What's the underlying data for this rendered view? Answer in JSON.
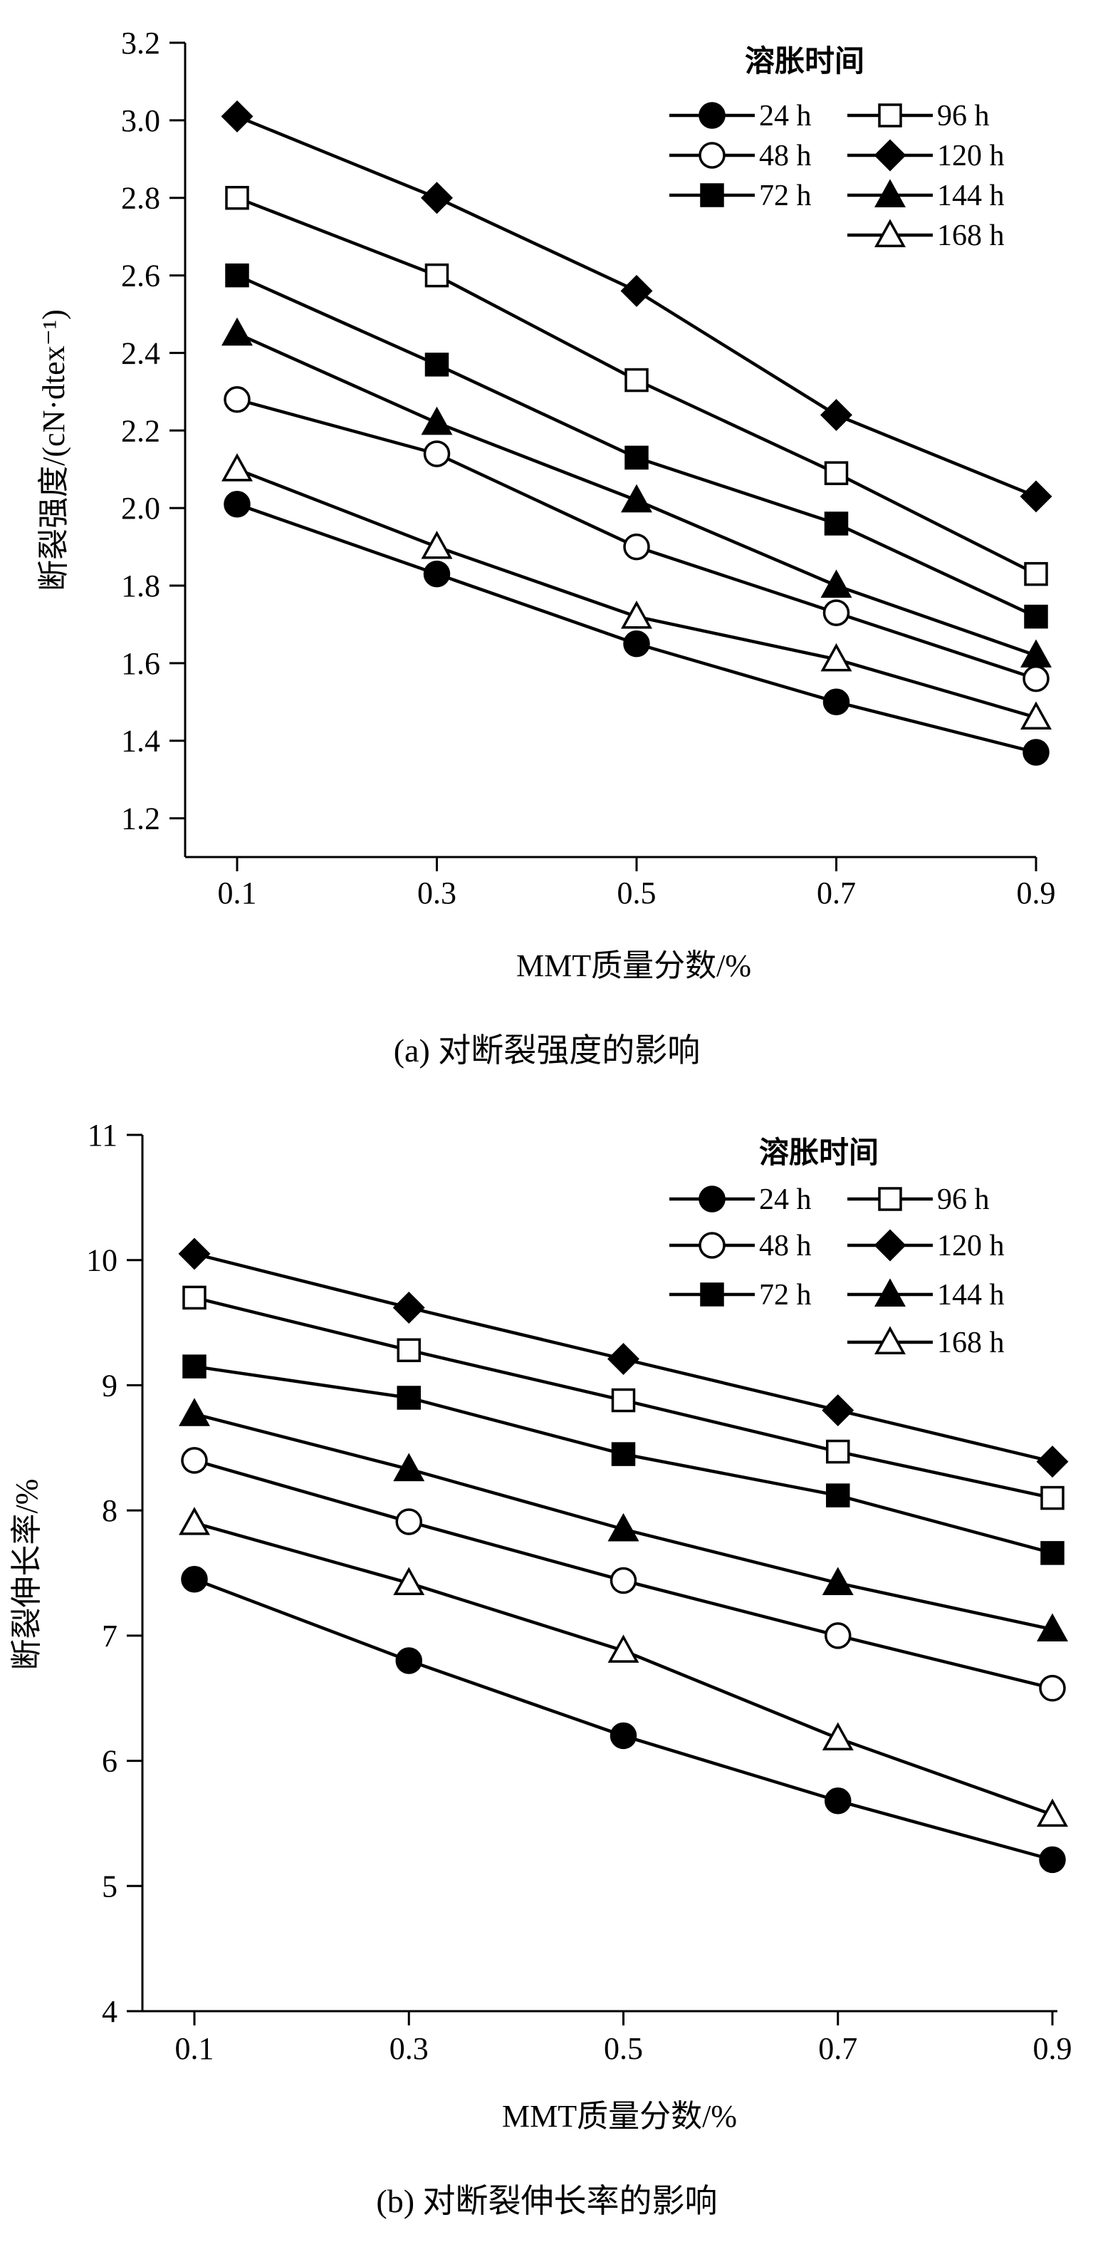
{
  "chart_data": [
    {
      "type": "line",
      "x": [
        0.1,
        0.3,
        0.5,
        0.7,
        0.9
      ],
      "xticks": [
        "0.1",
        "0.3",
        "0.5",
        "0.7",
        "0.9"
      ],
      "xlabel": "MMT质量分数/%",
      "ylabel": "断裂强度/(cN·dtex⁻¹)",
      "ylim": [
        1.1,
        3.2
      ],
      "yticks": [
        "1.2",
        "1.4",
        "1.6",
        "1.8",
        "2.0",
        "2.2",
        "2.4",
        "2.6",
        "2.8",
        "3.0",
        "3.2"
      ],
      "caption": "(a) 对断裂强度的影响",
      "legend_title": "溶胀时间",
      "series": [
        {
          "name": "24 h",
          "marker": "circle-filled",
          "values": [
            2.01,
            1.83,
            1.65,
            1.5,
            1.37
          ]
        },
        {
          "name": "48 h",
          "marker": "circle-open",
          "values": [
            2.28,
            2.14,
            1.9,
            1.73,
            1.56
          ]
        },
        {
          "name": "72 h",
          "marker": "square-filled",
          "values": [
            2.6,
            2.37,
            2.13,
            1.96,
            1.72
          ]
        },
        {
          "name": "96 h",
          "marker": "square-open",
          "values": [
            2.8,
            2.6,
            2.33,
            2.09,
            1.83
          ]
        },
        {
          "name": "120 h",
          "marker": "diamond-filled",
          "values": [
            3.01,
            2.8,
            2.56,
            2.24,
            2.03
          ]
        },
        {
          "name": "144 h",
          "marker": "triangle-filled",
          "values": [
            2.45,
            2.22,
            2.02,
            1.8,
            1.62
          ]
        },
        {
          "name": "168 h",
          "marker": "triangle-open",
          "values": [
            2.1,
            1.9,
            1.72,
            1.61,
            1.46
          ]
        }
      ]
    },
    {
      "type": "line",
      "x": [
        0.1,
        0.3,
        0.5,
        0.7,
        0.9
      ],
      "xticks": [
        "0.1",
        "0.3",
        "0.5",
        "0.7",
        "0.9"
      ],
      "xlabel": "MMT质量分数/%",
      "ylabel": "断裂伸长率/%",
      "ylim": [
        4,
        11
      ],
      "yticks": [
        "4",
        "5",
        "6",
        "7",
        "8",
        "9",
        "10",
        "11"
      ],
      "caption": "(b) 对断裂伸长率的影响",
      "legend_title": "溶胀时间",
      "series": [
        {
          "name": "24 h",
          "marker": "circle-filled",
          "values": [
            7.45,
            6.8,
            6.2,
            5.68,
            5.21
          ]
        },
        {
          "name": "48 h",
          "marker": "circle-open",
          "values": [
            8.4,
            7.91,
            7.44,
            7.0,
            6.58
          ]
        },
        {
          "name": "72 h",
          "marker": "square-filled",
          "values": [
            9.15,
            8.9,
            8.45,
            8.12,
            7.66
          ]
        },
        {
          "name": "96 h",
          "marker": "square-open",
          "values": [
            9.7,
            9.28,
            8.88,
            8.47,
            8.1
          ]
        },
        {
          "name": "120 h",
          "marker": "diamond-filled",
          "values": [
            10.05,
            9.62,
            9.21,
            8.8,
            8.39
          ]
        },
        {
          "name": "144 h",
          "marker": "triangle-filled",
          "values": [
            8.77,
            8.33,
            7.85,
            7.42,
            7.05
          ]
        },
        {
          "name": "168 h",
          "marker": "triangle-open",
          "values": [
            7.9,
            7.42,
            6.88,
            6.18,
            5.57
          ]
        }
      ]
    }
  ]
}
